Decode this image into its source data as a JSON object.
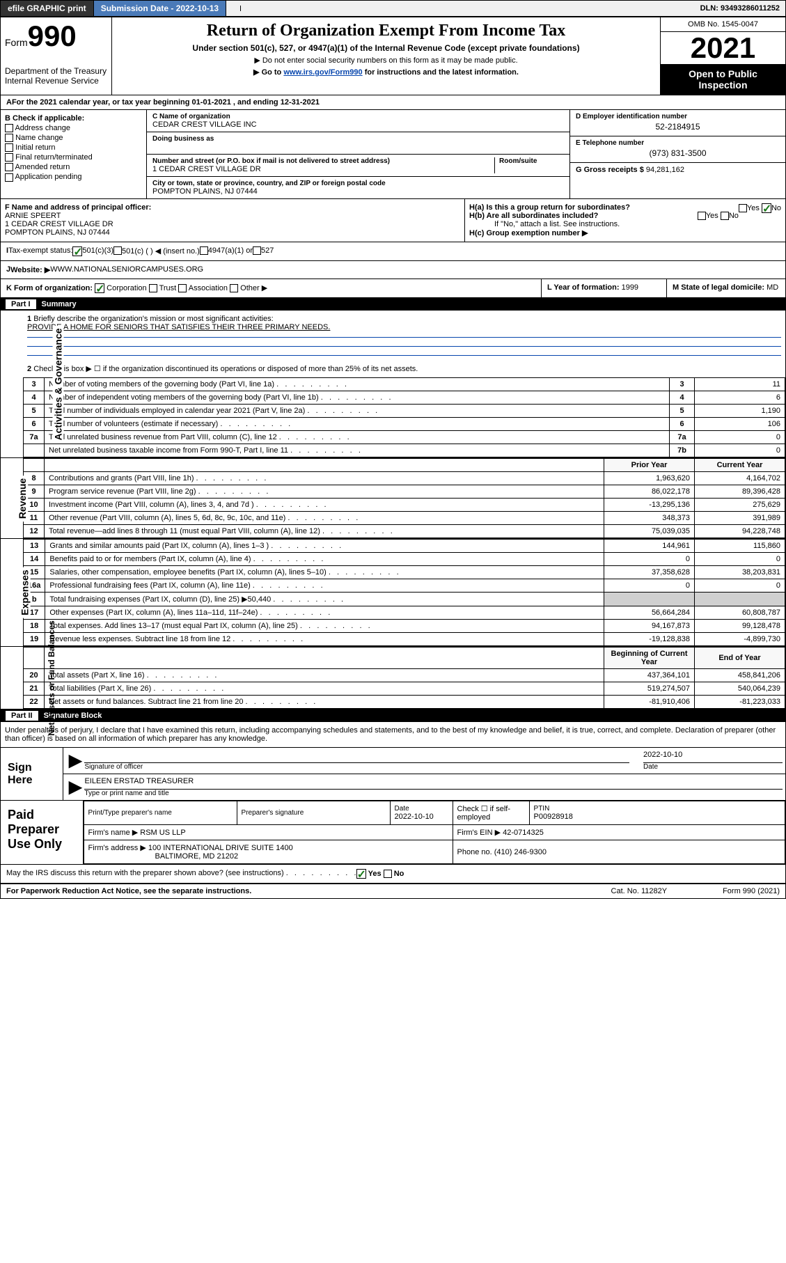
{
  "topbar": {
    "efile": "efile GRAPHIC print",
    "subdate_lbl": "Submission Date - 2022-10-13",
    "dln": "DLN: 93493286011252"
  },
  "header": {
    "form_prefix": "Form",
    "form_no": "990",
    "dept": "Department of the Treasury",
    "irs": "Internal Revenue Service",
    "title": "Return of Organization Exempt From Income Tax",
    "subtitle": "Under section 501(c), 527, or 4947(a)(1) of the Internal Revenue Code (except private foundations)",
    "note1": "▶ Do not enter social security numbers on this form as it may be made public.",
    "note2_pre": "▶ Go to ",
    "note2_link": "www.irs.gov/Form990",
    "note2_post": " for instructions and the latest information.",
    "omb": "OMB No. 1545-0047",
    "year": "2021",
    "opi": "Open to Public Inspection"
  },
  "lineA": {
    "text": "For the 2021 calendar year, or tax year beginning 01-01-2021   , and ending 12-31-2021"
  },
  "B": {
    "hdr": "B Check if applicable:",
    "opts": [
      "Address change",
      "Name change",
      "Initial return",
      "Final return/terminated",
      "Amended return",
      "Application pending"
    ]
  },
  "C": {
    "name_lbl": "C Name of organization",
    "name": "CEDAR CREST VILLAGE INC",
    "dba_lbl": "Doing business as",
    "dba": "",
    "addr_lbl": "Number and street (or P.O. box if mail is not delivered to street address)",
    "room_lbl": "Room/suite",
    "addr": "1 CEDAR CREST VILLAGE DR",
    "city_lbl": "City or town, state or province, country, and ZIP or foreign postal code",
    "city": "POMPTON PLAINS, NJ  07444"
  },
  "D": {
    "lbl": "D Employer identification number",
    "val": "52-2184915"
  },
  "E": {
    "lbl": "E Telephone number",
    "val": "(973) 831-3500"
  },
  "G": {
    "lbl": "G Gross receipts $",
    "val": "94,281,162"
  },
  "F": {
    "lbl": "F  Name and address of principal officer:",
    "name": "ARNIE SPEERT",
    "a1": "1 CEDAR CREST VILLAGE DR",
    "a2": "POMPTON PLAINS, NJ  07444"
  },
  "H": {
    "a": "H(a)  Is this a group return for subordinates?",
    "b": "H(b)  Are all subordinates included?",
    "bnote": "If \"No,\" attach a list. See instructions.",
    "c": "H(c)  Group exemption number ▶",
    "yes": "Yes",
    "no": "No"
  },
  "I": {
    "lbl": "Tax-exempt status:",
    "o1": "501(c)(3)",
    "o2": "501(c) (  ) ◀ (insert no.)",
    "o3": "4947(a)(1) or",
    "o4": "527"
  },
  "J": {
    "lbl": "Website: ▶",
    "val": "WWW.NATIONALSENIORCAMPUSES.ORG"
  },
  "K": {
    "lbl": "K Form of organization:",
    "o1": "Corporation",
    "o2": "Trust",
    "o3": "Association",
    "o4": "Other ▶"
  },
  "L": {
    "lbl": "L Year of formation:",
    "val": "1999"
  },
  "M": {
    "lbl": "M State of legal domicile:",
    "val": "MD"
  },
  "part1": {
    "hdr": "Part I",
    "title": "Summary",
    "l1": "Briefly describe the organization's mission or most significant activities:",
    "l1v": "PROVIDE A HOME FOR SENIORS THAT SATISFIES THEIR THREE PRIMARY NEEDS.",
    "l2": "Check this box ▶ ☐  if the organization discontinued its operations or disposed of more than 25% of its net assets.",
    "rows_top": [
      {
        "n": "3",
        "t": "Number of voting members of the governing body (Part VI, line 1a)",
        "k": "3",
        "v": "11"
      },
      {
        "n": "4",
        "t": "Number of independent voting members of the governing body (Part VI, line 1b)",
        "k": "4",
        "v": "6"
      },
      {
        "n": "5",
        "t": "Total number of individuals employed in calendar year 2021 (Part V, line 2a)",
        "k": "5",
        "v": "1,190"
      },
      {
        "n": "6",
        "t": "Total number of volunteers (estimate if necessary)",
        "k": "6",
        "v": "106"
      },
      {
        "n": "7a",
        "t": "Total unrelated business revenue from Part VIII, column (C), line 12",
        "k": "7a",
        "v": "0"
      },
      {
        "n": "",
        "t": "Net unrelated business taxable income from Form 990-T, Part I, line 11",
        "k": "7b",
        "v": "0"
      }
    ],
    "col_prior": "Prior Year",
    "col_curr": "Current Year",
    "rev": [
      {
        "n": "8",
        "t": "Contributions and grants (Part VIII, line 1h)",
        "p": "1,963,620",
        "c": "4,164,702"
      },
      {
        "n": "9",
        "t": "Program service revenue (Part VIII, line 2g)",
        "p": "86,022,178",
        "c": "89,396,428"
      },
      {
        "n": "10",
        "t": "Investment income (Part VIII, column (A), lines 3, 4, and 7d )",
        "p": "-13,295,136",
        "c": "275,629"
      },
      {
        "n": "11",
        "t": "Other revenue (Part VIII, column (A), lines 5, 6d, 8c, 9c, 10c, and 11e)",
        "p": "348,373",
        "c": "391,989"
      },
      {
        "n": "12",
        "t": "Total revenue—add lines 8 through 11 (must equal Part VIII, column (A), line 12)",
        "p": "75,039,035",
        "c": "94,228,748"
      }
    ],
    "exp": [
      {
        "n": "13",
        "t": "Grants and similar amounts paid (Part IX, column (A), lines 1–3 )",
        "p": "144,961",
        "c": "115,860"
      },
      {
        "n": "14",
        "t": "Benefits paid to or for members (Part IX, column (A), line 4)",
        "p": "0",
        "c": "0"
      },
      {
        "n": "15",
        "t": "Salaries, other compensation, employee benefits (Part IX, column (A), lines 5–10)",
        "p": "37,358,628",
        "c": "38,203,831"
      },
      {
        "n": "16a",
        "t": "Professional fundraising fees (Part IX, column (A), line 11e)",
        "p": "0",
        "c": "0"
      },
      {
        "n": "b",
        "t": "Total fundraising expenses (Part IX, column (D), line 25) ▶50,440",
        "p": "",
        "c": "",
        "sh": true
      },
      {
        "n": "17",
        "t": "Other expenses (Part IX, column (A), lines 11a–11d, 11f–24e)",
        "p": "56,664,284",
        "c": "60,808,787"
      },
      {
        "n": "18",
        "t": "Total expenses. Add lines 13–17 (must equal Part IX, column (A), line 25)",
        "p": "94,167,873",
        "c": "99,128,478"
      },
      {
        "n": "19",
        "t": "Revenue less expenses. Subtract line 18 from line 12",
        "p": "-19,128,838",
        "c": "-4,899,730"
      }
    ],
    "col_bcy": "Beginning of Current Year",
    "col_eoy": "End of Year",
    "net": [
      {
        "n": "20",
        "t": "Total assets (Part X, line 16)",
        "p": "437,364,101",
        "c": "458,841,206"
      },
      {
        "n": "21",
        "t": "Total liabilities (Part X, line 26)",
        "p": "519,274,507",
        "c": "540,064,239"
      },
      {
        "n": "22",
        "t": "Net assets or fund balances. Subtract line 21 from line 20",
        "p": "-81,910,406",
        "c": "-81,223,033"
      }
    ],
    "side1": "Activities & Governance",
    "side2": "Revenue",
    "side3": "Expenses",
    "side4": "Net Assets or Fund Balances"
  },
  "part2": {
    "hdr": "Part II",
    "title": "Signature Block",
    "decl": "Under penalties of perjury, I declare that I have examined this return, including accompanying schedules and statements, and to the best of my knowledge and belief, it is true, correct, and complete. Declaration of preparer (other than officer) is based on all information of which preparer has any knowledge.",
    "sign_here": "Sign Here",
    "sig_of": "Signature of officer",
    "date": "Date",
    "sigdate": "2022-10-10",
    "officer": "EILEEN ERSTAD TREASURER",
    "officer_lbl": "Type or print name and title",
    "paid": "Paid Preparer Use Only",
    "p_name_lbl": "Print/Type preparer's name",
    "p_sig_lbl": "Preparer's signature",
    "p_date_lbl": "Date",
    "p_date": "2022-10-10",
    "p_check": "Check ☐ if self-employed",
    "p_ptin_lbl": "PTIN",
    "p_ptin": "P00928918",
    "firm_name_lbl": "Firm's name    ▶",
    "firm_name": "RSM US LLP",
    "firm_ein_lbl": "Firm's EIN ▶",
    "firm_ein": "42-0714325",
    "firm_addr_lbl": "Firm's address ▶",
    "firm_addr": "100 INTERNATIONAL DRIVE SUITE 1400",
    "firm_addr2": "BALTIMORE, MD  21202",
    "firm_ph_lbl": "Phone no.",
    "firm_ph": "(410) 246-9300",
    "may": "May the IRS discuss this return with the preparer shown above? (see instructions)"
  },
  "footer": {
    "l": "For Paperwork Reduction Act Notice, see the separate instructions.",
    "c": "Cat. No. 11282Y",
    "r": "Form 990 (2021)"
  }
}
